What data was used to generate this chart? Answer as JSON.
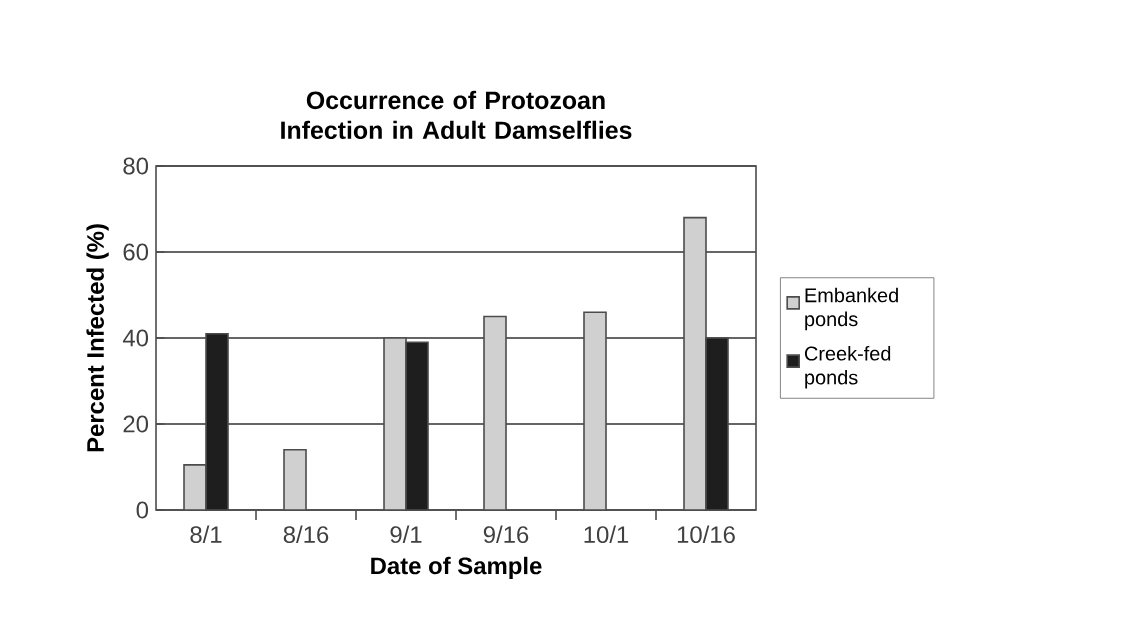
{
  "chart_data": {
    "type": "bar",
    "title": "Occurrence of Protozoan Infection in Adult Damselflies",
    "xlabel": "Date of Sample",
    "ylabel": "Percent Infected (%)",
    "categories": [
      "8/1",
      "8/16",
      "9/1",
      "9/16",
      "10/1",
      "10/16"
    ],
    "series": [
      {
        "name": "Embanked ponds",
        "color": "#d0d0d0",
        "values": [
          10.5,
          14,
          40,
          45,
          46,
          68
        ]
      },
      {
        "name": "Creek-fed ponds",
        "color": "#1e1e1e",
        "values": [
          41,
          null,
          39,
          null,
          null,
          40
        ]
      }
    ],
    "ylim": [
      0,
      80
    ],
    "yticks": [
      0,
      20,
      40,
      60,
      80
    ],
    "grid": "y",
    "legend": "right"
  }
}
